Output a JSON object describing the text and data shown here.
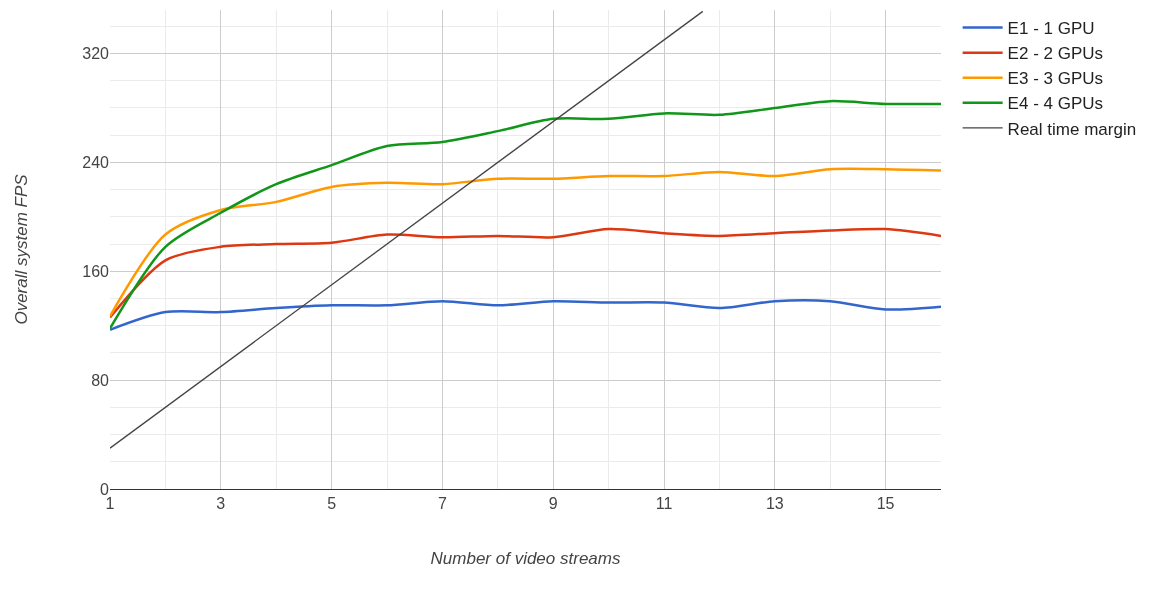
{
  "chart_data": {
    "type": "line",
    "xlabel": "Number of video streams",
    "ylabel": "Overall system FPS",
    "x": [
      1,
      2,
      3,
      4,
      5,
      6,
      7,
      8,
      9,
      10,
      11,
      12,
      13,
      14,
      15,
      16
    ],
    "series": [
      {
        "name": "E1 - 1 GPU",
        "color": "#3366cc",
        "values": [
          117,
          130,
          130,
          133,
          135,
          135,
          138,
          135,
          138,
          137,
          137,
          133,
          138,
          138,
          132,
          134
        ]
      },
      {
        "name": "E2 - 2 GPUs",
        "color": "#dc3912",
        "values": [
          126,
          168,
          178,
          180,
          181,
          187,
          185,
          186,
          185,
          191,
          188,
          186,
          188,
          190,
          191,
          186
        ]
      },
      {
        "name": "E3 - 3 GPUs",
        "color": "#ff9900",
        "values": [
          127,
          187,
          205,
          211,
          222,
          225,
          224,
          228,
          228,
          230,
          230,
          233,
          230,
          235,
          235,
          234
        ]
      },
      {
        "name": "E4 - 4 GPUs",
        "color": "#109618",
        "values": [
          118,
          178,
          203,
          224,
          238,
          252,
          255,
          263,
          272,
          272,
          276,
          275,
          280,
          285,
          283,
          283
        ]
      },
      {
        "name": "Real time margin",
        "color": "#444444",
        "x": [
          1,
          11.7
        ],
        "values": [
          30,
          351
        ]
      }
    ],
    "xlim": [
      1,
      16
    ],
    "xticks": [
      1,
      3,
      5,
      7,
      9,
      11,
      13,
      15
    ],
    "ylim": [
      0,
      352
    ],
    "yticks": [
      0,
      80,
      160,
      240,
      320
    ],
    "grid": true,
    "legend": "top right"
  }
}
